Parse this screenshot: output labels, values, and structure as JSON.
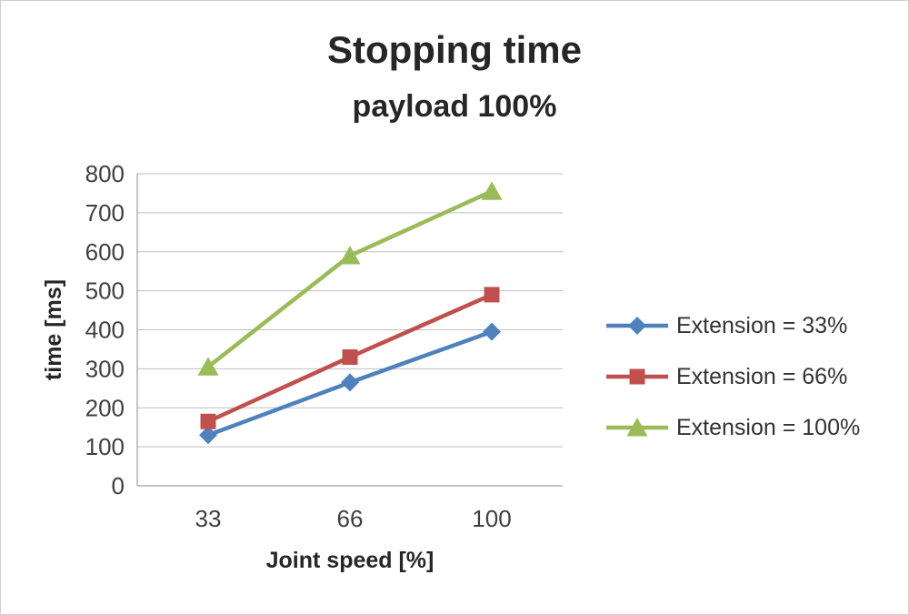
{
  "chart_data": {
    "type": "line",
    "title": "Stopping time",
    "subtitle": "payload 100%",
    "categories": [
      "33",
      "66",
      "100"
    ],
    "series": [
      {
        "name": "Extension = 33%",
        "values": [
          130,
          265,
          395
        ],
        "color": "#4F81BD",
        "marker": "diamond"
      },
      {
        "name": "Extension = 66%",
        "values": [
          165,
          330,
          490
        ],
        "color": "#C0504D",
        "marker": "square"
      },
      {
        "name": "Extension = 100%",
        "values": [
          305,
          590,
          755
        ],
        "color": "#9BBB59",
        "marker": "triangle"
      }
    ],
    "xlabel": "Joint speed [%]",
    "ylabel": "time [ms]",
    "ylim": [
      0,
      800
    ],
    "ytick_step": 100,
    "grid": true,
    "legend_position": "right",
    "colors": {
      "gridline": "#bfbfbf",
      "axis": "#8c8c8c",
      "tick_text": "#404040"
    }
  }
}
